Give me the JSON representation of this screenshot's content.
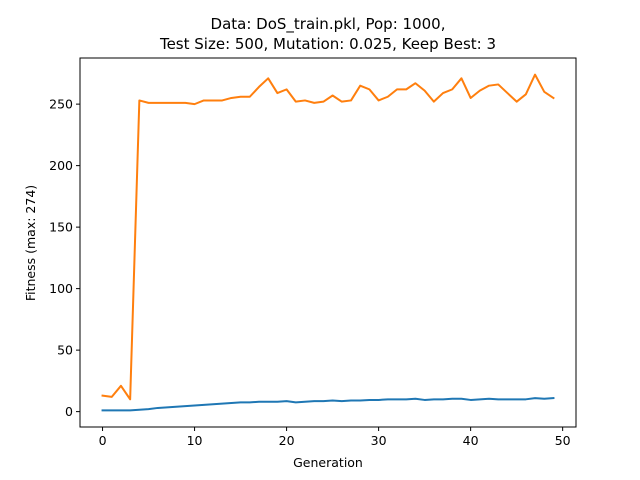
{
  "chart_data": {
    "type": "line",
    "title_lines": [
      "Data: DoS_train.pkl, Pop: 1000,",
      "Test Size: 500, Mutation: 0.025, Keep Best: 3"
    ],
    "xlabel": "Generation",
    "ylabel": "Fitness (max: 274)",
    "xlim": [
      -2.45,
      51.45
    ],
    "ylim": [
      -12.5,
      287.5
    ],
    "xticks": [
      0,
      10,
      20,
      30,
      40,
      50
    ],
    "yticks": [
      0,
      50,
      100,
      150,
      200,
      250
    ],
    "grid": false,
    "legend": "none",
    "x": [
      0,
      1,
      2,
      3,
      4,
      5,
      6,
      7,
      8,
      9,
      10,
      11,
      12,
      13,
      14,
      15,
      16,
      17,
      18,
      19,
      20,
      21,
      22,
      23,
      24,
      25,
      26,
      27,
      28,
      29,
      30,
      31,
      32,
      33,
      34,
      35,
      36,
      37,
      38,
      39,
      40,
      41,
      42,
      43,
      44,
      45,
      46,
      47,
      48,
      49
    ],
    "series": [
      {
        "color": "#1f77b4",
        "values": [
          1,
          1,
          1,
          1,
          1.5,
          2,
          3,
          3.5,
          4,
          4.5,
          5,
          5.5,
          6,
          6.5,
          7,
          7.5,
          7.5,
          8,
          8,
          8,
          8.5,
          7.5,
          8,
          8.5,
          8.5,
          9,
          8.5,
          9,
          9,
          9.5,
          9.5,
          10,
          10,
          10,
          10.5,
          9.5,
          10,
          10,
          10.5,
          10.5,
          9.5,
          10,
          10.5,
          10,
          10,
          10,
          10,
          11,
          10.5,
          11
        ]
      },
      {
        "color": "#ff7f0e",
        "values": [
          13,
          12,
          21,
          10,
          253,
          251,
          251,
          251,
          251,
          251,
          250,
          253,
          253,
          253,
          255,
          256,
          256,
          264,
          271,
          259,
          262,
          252,
          253,
          251,
          252,
          257,
          252,
          253,
          265,
          262,
          253,
          256,
          262,
          262,
          267,
          261,
          252,
          259,
          262,
          271,
          255,
          261,
          265,
          266,
          259,
          252,
          258,
          274,
          260,
          255
        ]
      }
    ]
  }
}
